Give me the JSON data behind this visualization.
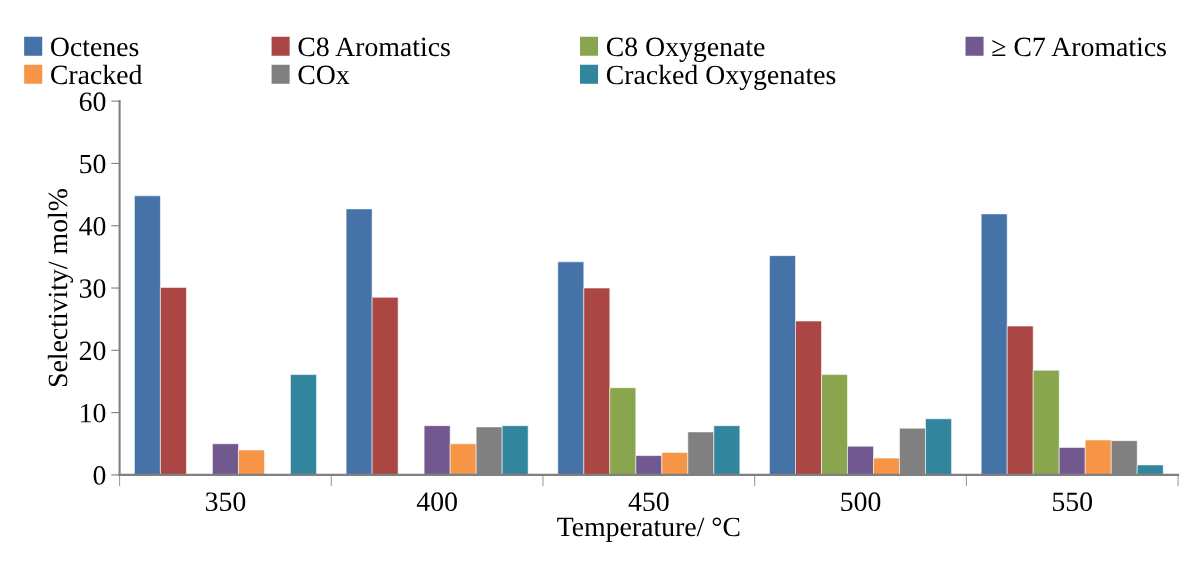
{
  "chart_data": {
    "type": "bar",
    "xlabel": "Temperature/ °C",
    "ylabel": "Selectivity/ mol%",
    "categories": [
      "350",
      "400",
      "450",
      "500",
      "550"
    ],
    "series": [
      {
        "name": "Octenes",
        "color": "#4572a7",
        "values": [
          44.8,
          42.7,
          34.2,
          35.2,
          41.9
        ]
      },
      {
        "name": "C8 Aromatics",
        "color": "#aa4643",
        "values": [
          30.1,
          28.5,
          30.0,
          24.7,
          23.9
        ]
      },
      {
        "name": "C8 Oxygenate",
        "color": "#89a54e",
        "values": [
          null,
          null,
          14.0,
          16.1,
          16.8
        ]
      },
      {
        "name": "≥ C7 Aromatics",
        "color": "#71588f",
        "values": [
          5.0,
          7.9,
          3.1,
          4.6,
          4.4
        ]
      },
      {
        "name": "Cracked",
        "color": "#f69546",
        "values": [
          4.0,
          5.0,
          3.6,
          2.7,
          5.6
        ]
      },
      {
        "name": "COx",
        "color": "#808080",
        "values": [
          null,
          7.7,
          6.9,
          7.5,
          5.5
        ]
      },
      {
        "name": "Cracked Oxygenates",
        "color": "#31859c",
        "values": [
          16.1,
          7.9,
          7.9,
          9.0,
          1.6
        ]
      }
    ],
    "ylim": [
      0,
      60
    ],
    "yticks": [
      0,
      10,
      20,
      30,
      40,
      50,
      60
    ],
    "grid": false,
    "legend": "top"
  }
}
